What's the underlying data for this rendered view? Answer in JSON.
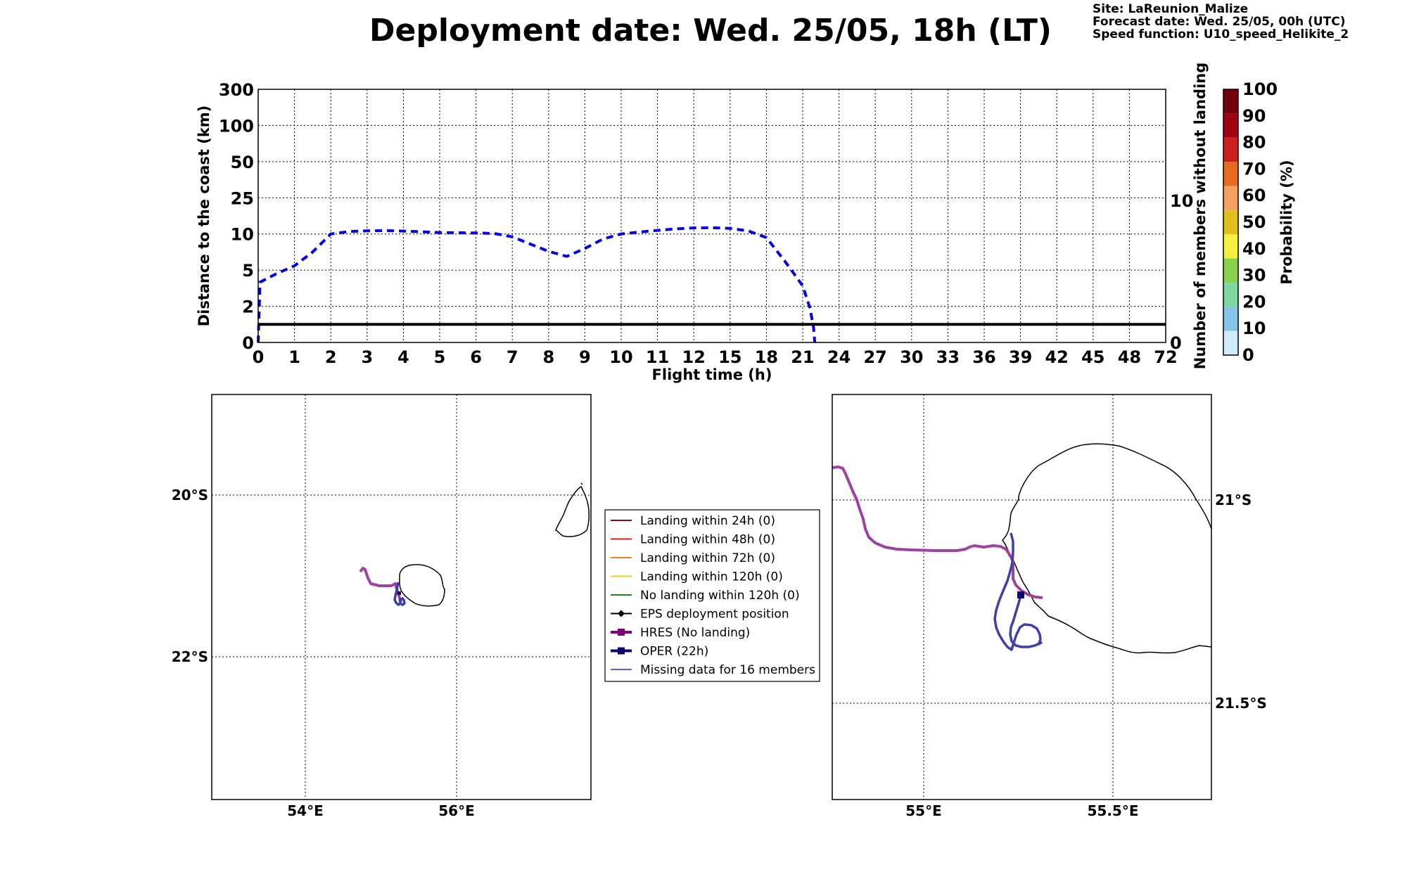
{
  "header": {
    "title": "Deployment date: Wed. 25/05, 18h (LT)",
    "site": "Site: LaReunion_Malize",
    "forecast": "Forecast date: Wed. 25/05, 00h (UTC)",
    "speed": "Speed function: U10_speed_Helikite_2"
  },
  "colors": {
    "distance_line": "#0000ee",
    "threshold_line": "#000000",
    "hres": "#a040a0",
    "oper": "#3f3fa8",
    "oper_marker": "#0a0a6e"
  },
  "chart_data": [
    {
      "type": "line",
      "xlabel": "Flight time (h)",
      "ylabel": "Distance to the coast (km)",
      "ylabel_right": "Number of members without landing",
      "x_ticks": [
        "0",
        "1",
        "2",
        "3",
        "4",
        "5",
        "6",
        "7",
        "8",
        "9",
        "10",
        "11",
        "12",
        "15",
        "18",
        "21",
        "24",
        "27",
        "30",
        "33",
        "36",
        "39",
        "42",
        "45",
        "48",
        "72"
      ],
      "y_ticks": [
        "0",
        "2",
        "5",
        "10",
        "25",
        "50",
        "100",
        "300"
      ],
      "y_right_ticks": [
        "0",
        "10"
      ],
      "grid": true,
      "series": [
        {
          "style": "dashed",
          "x": [
            0,
            0.05,
            0.5,
            1,
            1.5,
            2,
            2.5,
            3,
            3.5,
            4,
            4.5,
            5,
            5.5,
            6,
            6.5,
            7,
            7.5,
            8,
            8.5,
            9,
            9.5,
            10,
            10.5,
            11,
            11.5,
            12,
            13.5,
            15,
            16.5,
            18,
            19.5,
            21,
            21.6,
            21.9,
            22
          ],
          "y": [
            0,
            4,
            4.7,
            5.6,
            7.5,
            10,
            11,
            11.3,
            11.4,
            11.2,
            10.9,
            10.6,
            10.5,
            10.4,
            10.2,
            9.6,
            8.6,
            7.6,
            6.9,
            8,
            9.3,
            10,
            10.8,
            11.5,
            12.1,
            12.5,
            12.6,
            12.3,
            11.3,
            9.5,
            6.3,
            3.7,
            1.9,
            0.8,
            0
          ]
        },
        {
          "style": "solid",
          "x": [
            0,
            72
          ],
          "y": [
            1,
            1
          ]
        }
      ]
    },
    {
      "type": "colorbar",
      "label": "Probability (%)",
      "ticks": [
        "0",
        "10",
        "20",
        "30",
        "40",
        "50",
        "60",
        "70",
        "80",
        "90",
        "100"
      ],
      "colors": [
        "#d0ecfc",
        "#88c4e8",
        "#7fd6a0",
        "#8cd050",
        "#f4f040",
        "#e0c020",
        "#f4a060",
        "#e66a20",
        "#cc2020",
        "#a00010",
        "#700010"
      ]
    },
    {
      "type": "map",
      "name": "overview",
      "x_ticks": [
        "54°E",
        "56°E"
      ],
      "y_ticks": [
        "20°S",
        "22°S"
      ],
      "legend": [
        {
          "label": "Landing within 24h (0)",
          "color": "#8b0a14",
          "marker": "none",
          "width": 2
        },
        {
          "label": "Landing within 48h (0)",
          "color": "#e02020",
          "marker": "none",
          "width": 2
        },
        {
          "label": "Landing within 72h (0)",
          "color": "#f58220",
          "marker": "none",
          "width": 2
        },
        {
          "label": "Landing within 120h (0)",
          "color": "#f8cc10",
          "marker": "none",
          "width": 2
        },
        {
          "label": "No landing within 120h (0)",
          "color": "#1a8a1a",
          "marker": "none",
          "width": 2
        },
        {
          "label": "EPS deployment position",
          "color": "#000000",
          "marker": "diamond",
          "width": 2
        },
        {
          "label": "HRES (No landing)",
          "color": "#800080",
          "marker": "square",
          "width": 4
        },
        {
          "label": "OPER (22h)",
          "color": "#0a0a6e",
          "marker": "square",
          "width": 4
        },
        {
          "label": "Missing data for 16 members",
          "color": "#5c5cf0",
          "marker": "none",
          "width": 2
        }
      ]
    },
    {
      "type": "map",
      "name": "zoom",
      "x_ticks": [
        "55°E",
        "55.5°E"
      ],
      "y_ticks": [
        "21°S",
        "21.5°S"
      ]
    }
  ]
}
